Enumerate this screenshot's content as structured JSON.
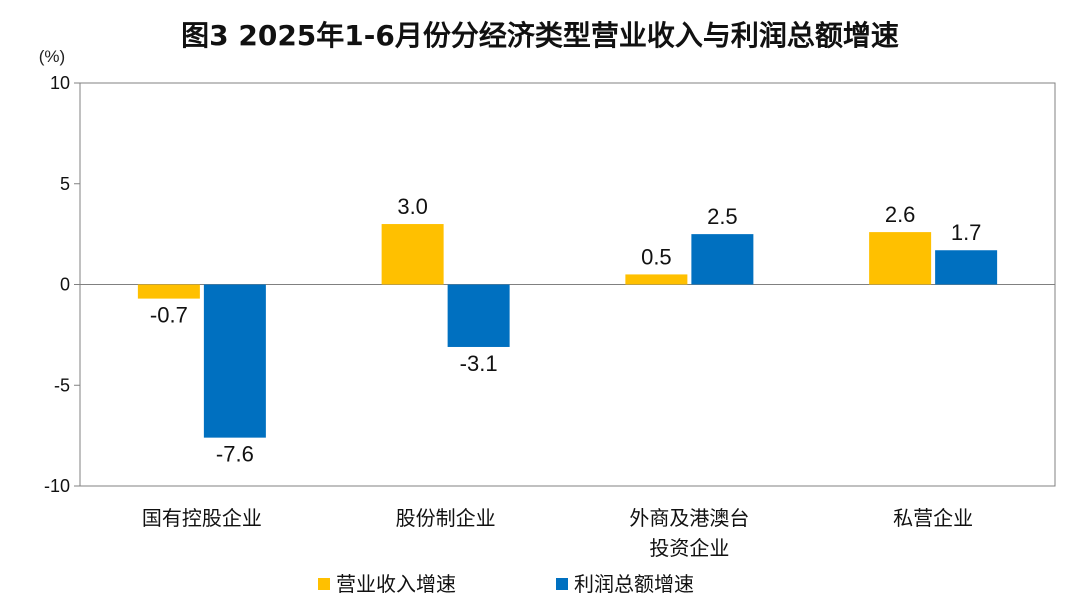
{
  "title": "图3 2025年1-6月份分经济类型营业收入与利润总额增速",
  "colors": {
    "revenue": "#FFC000",
    "profit": "#0070C0",
    "axis": "#808080",
    "zero_line": "#808080"
  },
  "chart_data": {
    "type": "bar",
    "title": "图3 2025年1-6月份分经济类型营业收入与利润总额增速",
    "ylabel": "(%)",
    "xlabel": "",
    "ylim": [
      -10,
      10
    ],
    "yticks": [
      10,
      5,
      0,
      -5,
      -10
    ],
    "ytick_labels": [
      "10",
      "5",
      "0",
      "-5",
      "-10"
    ],
    "categories": [
      [
        "国有控股企业"
      ],
      [
        "股份制企业"
      ],
      [
        "外商及港澳台",
        "投资企业"
      ],
      [
        "私营企业"
      ]
    ],
    "series": [
      {
        "name": "营业收入增速",
        "values": [
          -0.7,
          3.0,
          0.5,
          2.6
        ],
        "labels": [
          "-0.7",
          "3.0",
          "0.5",
          "2.6"
        ]
      },
      {
        "name": "利润总额增速",
        "values": [
          -7.6,
          -3.1,
          2.5,
          1.7
        ],
        "labels": [
          "-7.6",
          "-3.1",
          "2.5",
          "1.7"
        ]
      }
    ],
    "grid": false,
    "legend_position": "bottom"
  }
}
